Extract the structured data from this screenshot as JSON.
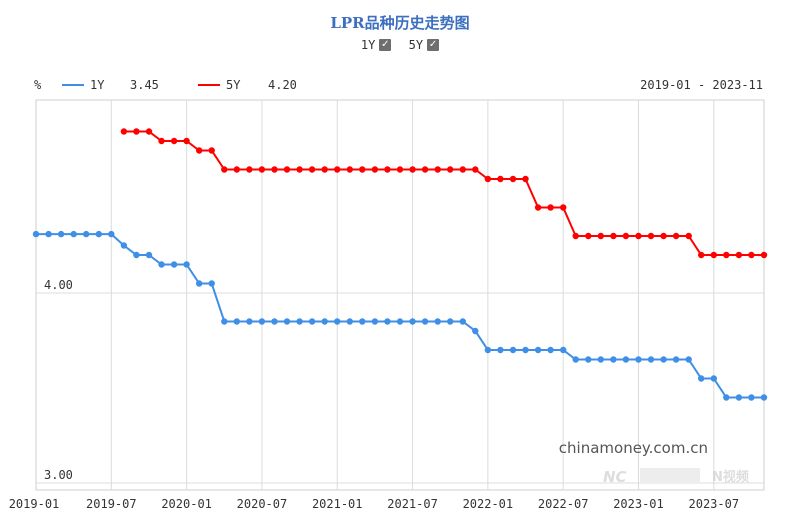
{
  "title": "LPR品种历史走势图",
  "toggles": [
    {
      "label": "1Y",
      "checked": true
    },
    {
      "label": "5Y",
      "checked": true
    }
  ],
  "unit": "%",
  "date_range": "2019-01 - 2023-11",
  "watermark": "chinamoney.com.cn",
  "logo_text": "N视频",
  "chart_data": {
    "type": "line",
    "title": "LPR品种历史走势图",
    "ylabel": "%",
    "y_tick_labels": [
      "4.00",
      "3.00"
    ],
    "x_tick_labels": [
      "2019-01",
      "2019-07",
      "2020-01",
      "2020-07",
      "2021-01",
      "2021-07",
      "2022-01",
      "2022-07",
      "2023-01",
      "2023-07"
    ],
    "grid": true,
    "legend_position": "top-left",
    "series": [
      {
        "name": "1Y",
        "latest": "3.45",
        "color": "#3f8fe6",
        "points": [
          [
            "2019-01",
            4.31
          ],
          [
            "2019-02",
            4.31
          ],
          [
            "2019-03",
            4.31
          ],
          [
            "2019-04",
            4.31
          ],
          [
            "2019-05",
            4.31
          ],
          [
            "2019-06",
            4.31
          ],
          [
            "2019-07",
            4.31
          ],
          [
            "2019-08",
            4.25
          ],
          [
            "2019-09",
            4.2
          ],
          [
            "2019-10",
            4.2
          ],
          [
            "2019-11",
            4.15
          ],
          [
            "2019-12",
            4.15
          ],
          [
            "2020-01",
            4.15
          ],
          [
            "2020-02",
            4.05
          ],
          [
            "2020-03",
            4.05
          ],
          [
            "2020-04",
            3.85
          ],
          [
            "2020-05",
            3.85
          ],
          [
            "2020-06",
            3.85
          ],
          [
            "2020-07",
            3.85
          ],
          [
            "2020-08",
            3.85
          ],
          [
            "2020-09",
            3.85
          ],
          [
            "2020-10",
            3.85
          ],
          [
            "2020-11",
            3.85
          ],
          [
            "2020-12",
            3.85
          ],
          [
            "2021-01",
            3.85
          ],
          [
            "2021-02",
            3.85
          ],
          [
            "2021-03",
            3.85
          ],
          [
            "2021-04",
            3.85
          ],
          [
            "2021-05",
            3.85
          ],
          [
            "2021-06",
            3.85
          ],
          [
            "2021-07",
            3.85
          ],
          [
            "2021-08",
            3.85
          ],
          [
            "2021-09",
            3.85
          ],
          [
            "2021-10",
            3.85
          ],
          [
            "2021-11",
            3.85
          ],
          [
            "2021-12",
            3.8
          ],
          [
            "2022-01",
            3.7
          ],
          [
            "2022-02",
            3.7
          ],
          [
            "2022-03",
            3.7
          ],
          [
            "2022-04",
            3.7
          ],
          [
            "2022-05",
            3.7
          ],
          [
            "2022-06",
            3.7
          ],
          [
            "2022-07",
            3.7
          ],
          [
            "2022-08",
            3.65
          ],
          [
            "2022-09",
            3.65
          ],
          [
            "2022-10",
            3.65
          ],
          [
            "2022-11",
            3.65
          ],
          [
            "2022-12",
            3.65
          ],
          [
            "2023-01",
            3.65
          ],
          [
            "2023-02",
            3.65
          ],
          [
            "2023-03",
            3.65
          ],
          [
            "2023-04",
            3.65
          ],
          [
            "2023-05",
            3.65
          ],
          [
            "2023-06",
            3.55
          ],
          [
            "2023-07",
            3.55
          ],
          [
            "2023-08",
            3.45
          ],
          [
            "2023-09",
            3.45
          ],
          [
            "2023-10",
            3.45
          ],
          [
            "2023-11",
            3.45
          ]
        ]
      },
      {
        "name": "5Y",
        "latest": "4.20",
        "color": "#ff0000",
        "points": [
          [
            "2019-08",
            4.85
          ],
          [
            "2019-09",
            4.85
          ],
          [
            "2019-10",
            4.85
          ],
          [
            "2019-11",
            4.8
          ],
          [
            "2019-12",
            4.8
          ],
          [
            "2020-01",
            4.8
          ],
          [
            "2020-02",
            4.75
          ],
          [
            "2020-03",
            4.75
          ],
          [
            "2020-04",
            4.65
          ],
          [
            "2020-05",
            4.65
          ],
          [
            "2020-06",
            4.65
          ],
          [
            "2020-07",
            4.65
          ],
          [
            "2020-08",
            4.65
          ],
          [
            "2020-09",
            4.65
          ],
          [
            "2020-10",
            4.65
          ],
          [
            "2020-11",
            4.65
          ],
          [
            "2020-12",
            4.65
          ],
          [
            "2021-01",
            4.65
          ],
          [
            "2021-02",
            4.65
          ],
          [
            "2021-03",
            4.65
          ],
          [
            "2021-04",
            4.65
          ],
          [
            "2021-05",
            4.65
          ],
          [
            "2021-06",
            4.65
          ],
          [
            "2021-07",
            4.65
          ],
          [
            "2021-08",
            4.65
          ],
          [
            "2021-09",
            4.65
          ],
          [
            "2021-10",
            4.65
          ],
          [
            "2021-11",
            4.65
          ],
          [
            "2021-12",
            4.65
          ],
          [
            "2022-01",
            4.6
          ],
          [
            "2022-02",
            4.6
          ],
          [
            "2022-03",
            4.6
          ],
          [
            "2022-04",
            4.6
          ],
          [
            "2022-05",
            4.45
          ],
          [
            "2022-06",
            4.45
          ],
          [
            "2022-07",
            4.45
          ],
          [
            "2022-08",
            4.3
          ],
          [
            "2022-09",
            4.3
          ],
          [
            "2022-10",
            4.3
          ],
          [
            "2022-11",
            4.3
          ],
          [
            "2022-12",
            4.3
          ],
          [
            "2023-01",
            4.3
          ],
          [
            "2023-02",
            4.3
          ],
          [
            "2023-03",
            4.3
          ],
          [
            "2023-04",
            4.3
          ],
          [
            "2023-05",
            4.3
          ],
          [
            "2023-06",
            4.2
          ],
          [
            "2023-07",
            4.2
          ],
          [
            "2023-08",
            4.2
          ],
          [
            "2023-09",
            4.2
          ],
          [
            "2023-10",
            4.2
          ],
          [
            "2023-11",
            4.2
          ]
        ]
      }
    ]
  }
}
